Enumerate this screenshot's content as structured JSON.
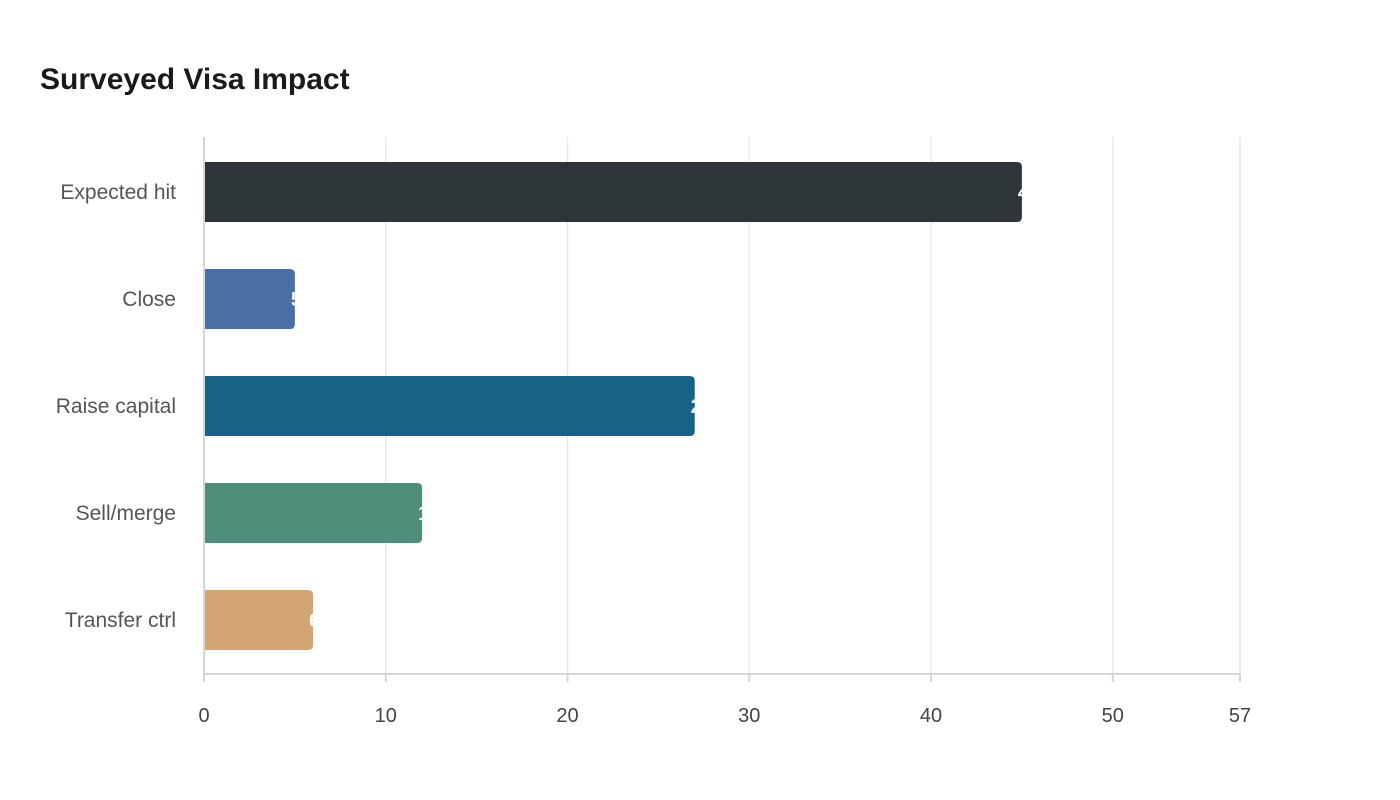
{
  "chart_data": {
    "type": "bar",
    "orientation": "horizontal",
    "title": "Surveyed Visa Impact",
    "xlabel": "",
    "ylabel": "",
    "categories": [
      "Expected hit",
      "Close",
      "Raise capital",
      "Sell/merge",
      "Transfer ctrl"
    ],
    "values": [
      45,
      5,
      27,
      12,
      6
    ],
    "colors": [
      "#2d3538",
      "#4a6fa5",
      "#186187",
      "#4f8e7b",
      "#d4a574"
    ],
    "xlim": [
      0,
      57
    ],
    "x_ticks": [
      0,
      10,
      20,
      30,
      40,
      50,
      57
    ],
    "grid": true,
    "legend": "none"
  }
}
